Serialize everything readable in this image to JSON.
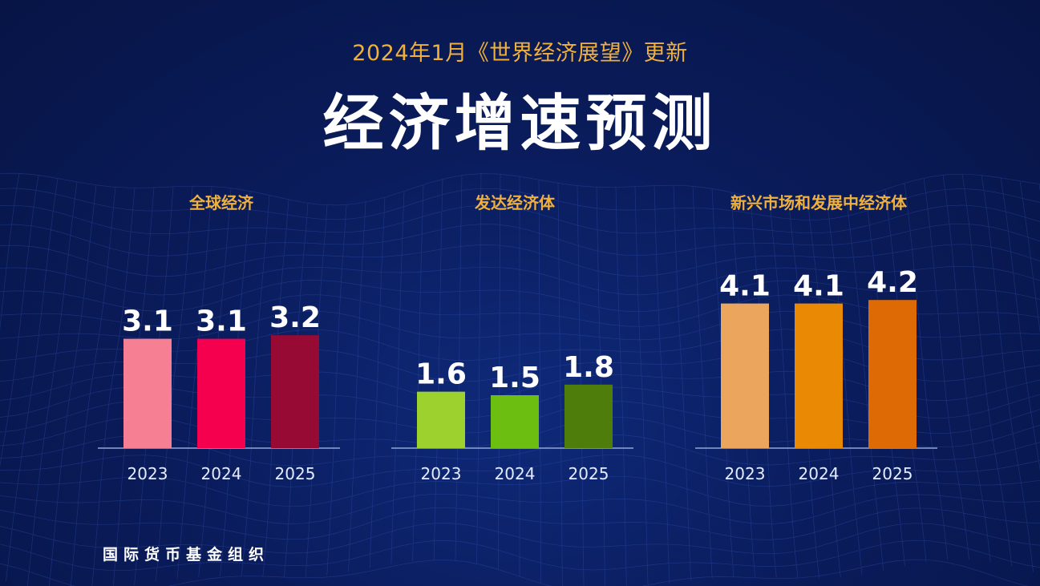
{
  "header": {
    "subtitle": "2024年1月《世界经济展望》更新",
    "title": "经济增速预测"
  },
  "footer": {
    "source": "国际货币基金组织"
  },
  "chart_data": [
    {
      "type": "bar",
      "title": "全球经济",
      "categories": [
        "2023",
        "2024",
        "2025"
      ],
      "values": [
        3.1,
        3.1,
        3.2
      ],
      "value_labels": [
        "3.1",
        "3.1",
        "3.2"
      ],
      "colors": [
        "#f77f93",
        "#f4004f",
        "#960a33"
      ],
      "title_color": "#f0b13c",
      "ylim": [
        0,
        5
      ],
      "grid": false,
      "legend": "none"
    },
    {
      "type": "bar",
      "title": "发达经济体",
      "categories": [
        "2023",
        "2024",
        "2025"
      ],
      "values": [
        1.6,
        1.5,
        1.8
      ],
      "value_labels": [
        "1.6",
        "1.5",
        "1.8"
      ],
      "colors": [
        "#9dd22e",
        "#6cbe11",
        "#4f7d0c"
      ],
      "title_color": "#f0b13c",
      "ylim": [
        0,
        5
      ],
      "grid": false,
      "legend": "none"
    },
    {
      "type": "bar",
      "title": "新兴市场和发展中经济体",
      "categories": [
        "2023",
        "2024",
        "2025"
      ],
      "values": [
        4.1,
        4.1,
        4.2
      ],
      "value_labels": [
        "4.1",
        "4.1",
        "4.2"
      ],
      "colors": [
        "#eba55c",
        "#ea8a04",
        "#dd6a04"
      ],
      "title_color": "#f0b13c",
      "ylim": [
        0,
        5
      ],
      "grid": false,
      "legend": "none"
    }
  ]
}
